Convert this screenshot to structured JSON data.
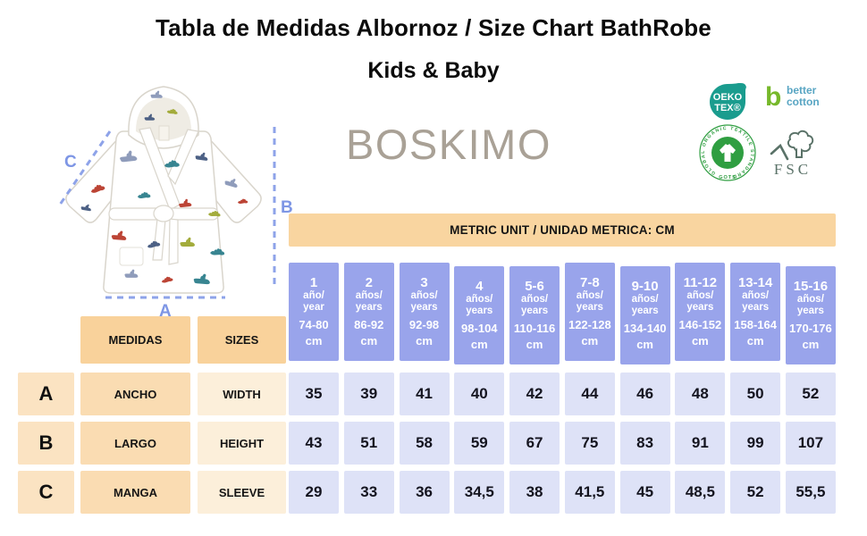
{
  "title": "Tabla de Medidas Albornoz / Size Chart BathRobe",
  "subtitle": "Kids & Baby",
  "brand": "BOSKIMO",
  "diagram": {
    "label_a": "A",
    "label_b": "B",
    "label_c": "C",
    "accent_color": "#8ea3e9"
  },
  "badges": {
    "oeko_line1": "OEKO",
    "oeko_line2": "TEX®",
    "oeko_color": "#1a9c8e",
    "bci_letter": "b",
    "bci_line1": "better",
    "bci_line2": "cotton",
    "bci_green": "#76b82a",
    "bci_blue": "#58a5c3",
    "gots_ring_text": "GLOBAL ORGANIC TEXTILE STANDARD",
    "gots_bottom_text": "GOTS",
    "gots_green": "#2f9e41",
    "fsc_label": "FSC",
    "fsc_color": "#5a7268"
  },
  "table": {
    "unit_banner": "METRIC UNIT / UNIDAD METRICA: CM",
    "row_header_es": "MEDIDAS",
    "row_header_en": "SIZES",
    "columns": [
      {
        "size": "1",
        "age_es": "año/",
        "age_en": "year",
        "range": "74-80",
        "unit": "cm"
      },
      {
        "size": "2",
        "age_es": "años/",
        "age_en": "years",
        "range": "86-92",
        "unit": "cm"
      },
      {
        "size": "3",
        "age_es": "años/",
        "age_en": "years",
        "range": "92-98",
        "unit": "cm"
      },
      {
        "size": "4",
        "age_es": "años/",
        "age_en": "years",
        "range": "98-104",
        "unit": "cm"
      },
      {
        "size": "5-6",
        "age_es": "años/",
        "age_en": "years",
        "range": "110-116",
        "unit": "cm"
      },
      {
        "size": "7-8",
        "age_es": "años/",
        "age_en": "years",
        "range": "122-128",
        "unit": "cm"
      },
      {
        "size": "9-10",
        "age_es": "años/",
        "age_en": "years",
        "range": "134-140",
        "unit": "cm"
      },
      {
        "size": "11-12",
        "age_es": "años/",
        "age_en": "years",
        "range": "146-152",
        "unit": "cm"
      },
      {
        "size": "13-14",
        "age_es": "años/",
        "age_en": "years",
        "range": "158-164",
        "unit": "cm"
      },
      {
        "size": "15-16",
        "age_es": "años/",
        "age_en": "years",
        "range": "170-176",
        "unit": "cm"
      }
    ],
    "rows": [
      {
        "letter": "A",
        "name_es": "ANCHO",
        "name_en": "WIDTH",
        "values": [
          "35",
          "39",
          "41",
          "40",
          "42",
          "44",
          "46",
          "48",
          "50",
          "52"
        ]
      },
      {
        "letter": "B",
        "name_es": "LARGO",
        "name_en": "HEIGHT",
        "values": [
          "43",
          "51",
          "58",
          "59",
          "67",
          "75",
          "83",
          "91",
          "99",
          "107"
        ]
      },
      {
        "letter": "C",
        "name_es": "MANGA",
        "name_en": "SLEEVE",
        "values": [
          "29",
          "33",
          "36",
          "34,5",
          "38",
          "41,5",
          "45",
          "48,5",
          "52",
          "55,5"
        ]
      }
    ]
  },
  "colors": {
    "banner_orange": "#f9d5a0",
    "header_orange": "#f9d29b",
    "letter_peach": "#fbe3c2",
    "es_peach": "#fadcb2",
    "en_cream": "#fcefda",
    "size_purple": "#99a4eb",
    "value_lavender": "#dee2f7",
    "brand_gray": "#a9a196"
  },
  "chart_data": {
    "type": "table",
    "title": "Tabla de Medidas Albornoz / Size Chart BathRobe - Kids & Baby",
    "unit": "cm",
    "columns": [
      "1 año/year 74-80 cm",
      "2 años/years 86-92 cm",
      "3 años/years 92-98 cm",
      "4 años/years 98-104 cm",
      "5-6 años/years 110-116 cm",
      "7-8 años/years 122-128 cm",
      "9-10 años/years 134-140 cm",
      "11-12 años/years 146-152 cm",
      "13-14 años/years 158-164 cm",
      "15-16 años/years 170-176 cm"
    ],
    "rows": [
      {
        "label": "A - ANCHO / WIDTH",
        "values": [
          35,
          39,
          41,
          40,
          42,
          44,
          46,
          48,
          50,
          52
        ]
      },
      {
        "label": "B - LARGO / HEIGHT",
        "values": [
          43,
          51,
          58,
          59,
          67,
          75,
          83,
          91,
          99,
          107
        ]
      },
      {
        "label": "C - MANGA / SLEEVE",
        "values": [
          29,
          33,
          36,
          34.5,
          38,
          41.5,
          45,
          48.5,
          52,
          55.5
        ]
      }
    ]
  }
}
